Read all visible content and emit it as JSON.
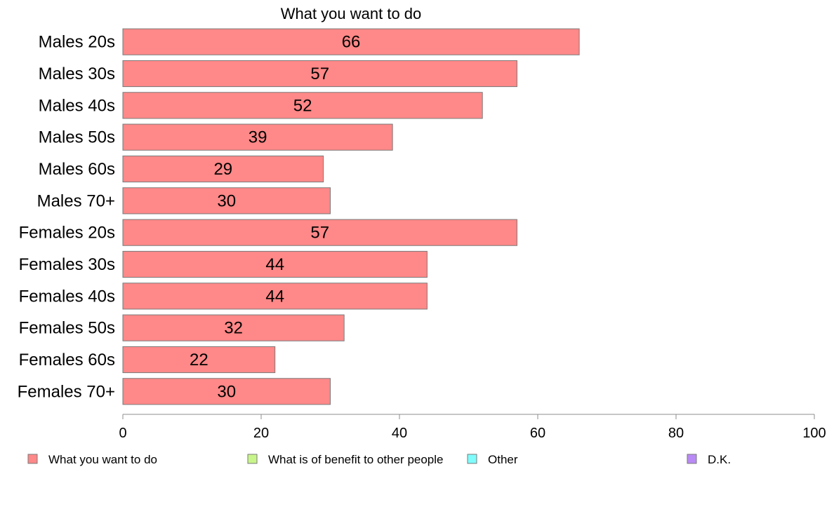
{
  "chart_data": {
    "type": "bar",
    "orientation": "horizontal",
    "title": "What you want to do",
    "categories": [
      "Males 20s",
      "Males 30s",
      "Males 40s",
      "Males 50s",
      "Males 60s",
      "Males 70+",
      "Females 20s",
      "Females 30s",
      "Females 40s",
      "Females 50s",
      "Females 60s",
      "Females 70+"
    ],
    "series": [
      {
        "name": "What you want to do",
        "color": "#ff8888",
        "values": [
          66,
          57,
          52,
          39,
          29,
          30,
          57,
          44,
          44,
          32,
          22,
          30
        ]
      }
    ],
    "xlim": [
      0,
      100
    ],
    "xticks": [
      0,
      20,
      40,
      60,
      80,
      100
    ],
    "grid": false,
    "legend": {
      "position": "bottom",
      "entries": [
        {
          "label": "What you want to do",
          "color": "#ff8888"
        },
        {
          "label": "What is of benefit to other people",
          "color": "#c8f58a"
        },
        {
          "label": "Other",
          "color": "#7ffcfc"
        },
        {
          "label": "D.K.",
          "color": "#b98af5"
        }
      ]
    }
  }
}
